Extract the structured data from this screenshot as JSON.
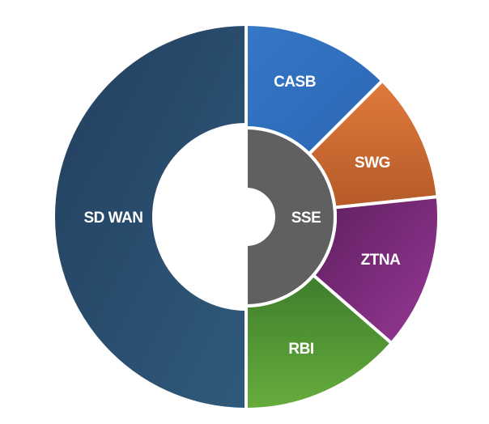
{
  "outer_ring": {
    "left": "SD WAN",
    "right": [
      "CASB",
      "SWG",
      "ZTNA",
      "RBI"
    ]
  },
  "inner_ring": "SSE"
}
